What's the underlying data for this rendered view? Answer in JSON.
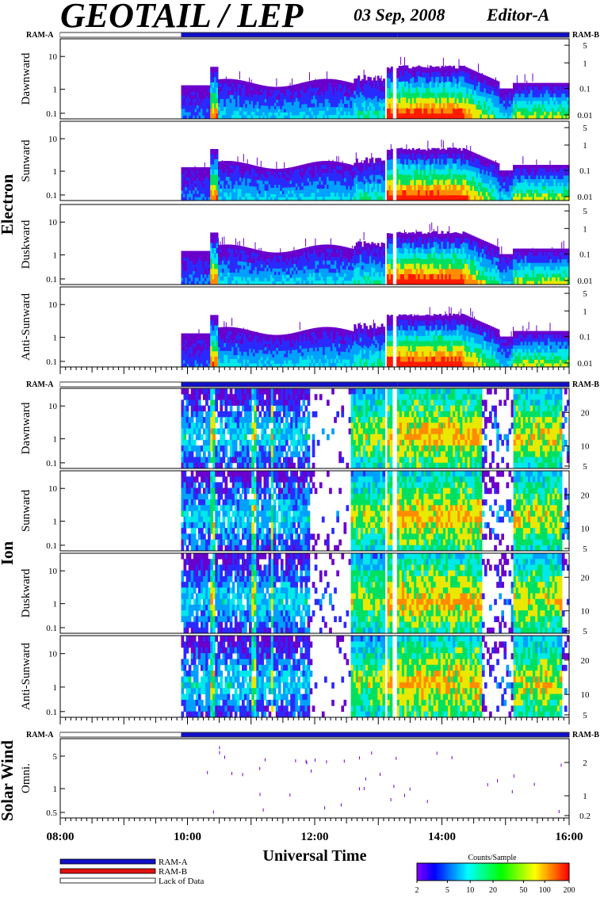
{
  "header": {
    "title": "GEOTAIL / LEP",
    "date": "03 Sep, 2008",
    "editor": "Editor-A"
  },
  "colors": {
    "ram_a": "#1010c8",
    "ram_b": "#e01010",
    "lack_of_data": "#ffffff",
    "frame": "#000000"
  },
  "groups": [
    {
      "label": "Electron"
    },
    {
      "label": "Ion"
    },
    {
      "label": "Solar Wind"
    }
  ],
  "status_bar_labels": {
    "left": "RAM-A",
    "right": "RAM-B"
  },
  "x_axis": {
    "label": "Universal Time",
    "ticks": [
      "08:00",
      "10:00",
      "12:00",
      "14:00",
      "16:00"
    ],
    "range_hours": [
      8,
      16
    ]
  },
  "legend": {
    "items": [
      {
        "label": "RAM-A",
        "color": "#1010c8"
      },
      {
        "label": "RAM-B",
        "color": "#e01010"
      },
      {
        "label": "Lack of Data",
        "color": "#ffffff"
      }
    ]
  },
  "colorbar": {
    "title": "Counts/Sample",
    "ticks": [
      "2",
      "5",
      "10",
      "20",
      "50",
      "100",
      "200"
    ]
  },
  "chart_data": [
    {
      "type": "heatmap",
      "group": "Electron",
      "panels": [
        {
          "ylabel": "Dawnward",
          "yticks_left": [
            "10",
            "1",
            "0.1"
          ],
          "yticks_right": [
            "5",
            "1",
            "0.1",
            "0.01"
          ]
        },
        {
          "ylabel": "Sunward",
          "yticks_left": [
            "10",
            "1",
            "0.1"
          ],
          "yticks_right": [
            "5",
            "1",
            "0.1",
            "0.01"
          ]
        },
        {
          "ylabel": "Duskward",
          "yticks_left": [
            "10",
            "1",
            "0.1"
          ],
          "yticks_right": [
            "5",
            "1",
            "0.1",
            "0.01"
          ]
        },
        {
          "ylabel": "Anti-Sunward",
          "yticks_left": [
            "10",
            "1",
            "0.1"
          ],
          "yticks_right": [
            "5",
            "1",
            "0.1",
            "0.01"
          ]
        }
      ],
      "status": [
        {
          "start": 8.0,
          "end": 9.9,
          "mode": "Lack of Data"
        },
        {
          "start": 9.9,
          "end": 13.3,
          "mode": "RAM-A"
        },
        {
          "start": 13.3,
          "end": 16.0,
          "mode": "RAM-A"
        }
      ]
    },
    {
      "type": "heatmap",
      "group": "Ion",
      "panels": [
        {
          "ylabel": "Dawnward",
          "yticks_left": [
            "10",
            "1",
            "0.1"
          ],
          "yticks_right": [
            "20",
            "10",
            "5"
          ]
        },
        {
          "ylabel": "Sunward",
          "yticks_left": [
            "10",
            "1",
            "0.1"
          ],
          "yticks_right": [
            "20",
            "10",
            "5"
          ]
        },
        {
          "ylabel": "Duskward",
          "yticks_left": [
            "10",
            "1",
            "0.1"
          ],
          "yticks_right": [
            "20",
            "10",
            "5"
          ]
        },
        {
          "ylabel": "Anti-Sunward",
          "yticks_left": [
            "10",
            "1",
            "0.1"
          ],
          "yticks_right": [
            "20",
            "10",
            "5"
          ]
        }
      ],
      "status": [
        {
          "start": 8.0,
          "end": 9.9,
          "mode": "Lack of Data"
        },
        {
          "start": 9.9,
          "end": 13.3,
          "mode": "RAM-A"
        },
        {
          "start": 13.3,
          "end": 16.0,
          "mode": "RAM-A"
        }
      ]
    },
    {
      "type": "heatmap",
      "group": "Solar Wind",
      "panels": [
        {
          "ylabel": "Omni.",
          "yticks_left": [
            "5",
            "1",
            "0.5"
          ],
          "yticks_right": [
            "2",
            "1",
            "0.2"
          ]
        }
      ],
      "status": [
        {
          "start": 8.0,
          "end": 9.9,
          "mode": "Lack of Data"
        },
        {
          "start": 9.9,
          "end": 16.0,
          "mode": "RAM-A"
        }
      ]
    }
  ]
}
